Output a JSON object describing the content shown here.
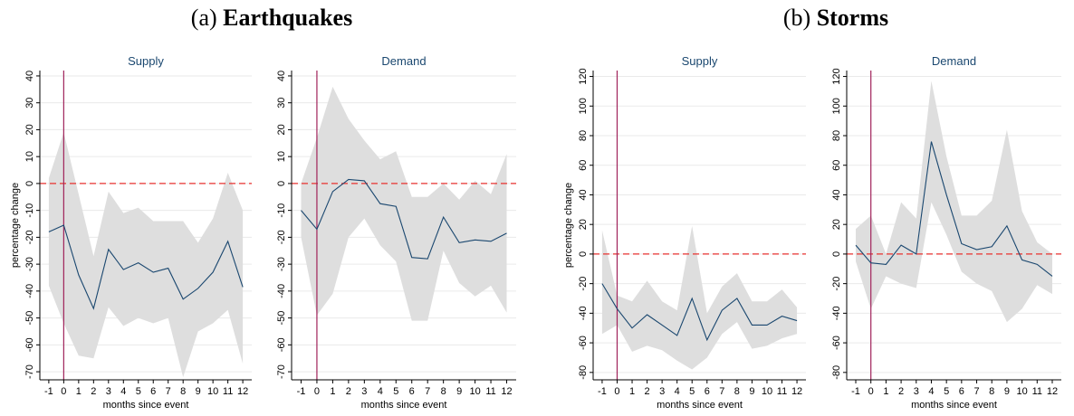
{
  "groups": [
    {
      "label": "(a)",
      "title": "Earthquakes"
    },
    {
      "label": "(b)",
      "title": "Storms"
    }
  ],
  "chart_data": [
    {
      "type": "line",
      "title": "Supply",
      "xlabel": "months since event",
      "ylabel": "percentage change",
      "x": [
        -1,
        0,
        1,
        2,
        3,
        4,
        5,
        6,
        7,
        8,
        9,
        10,
        11,
        12
      ],
      "values": [
        -18,
        -15.5,
        -34,
        -46.5,
        -24.5,
        -32,
        -29.5,
        -33,
        -31.5,
        -43,
        -39,
        -33,
        -21.5,
        -38.5
      ],
      "ci_upper": [
        2,
        19,
        -4,
        -27,
        -3,
        -11,
        -9,
        -14,
        -14,
        -14,
        -22,
        -13,
        4,
        -10
      ],
      "ci_lower": [
        -38,
        -52,
        -64,
        -65,
        -46,
        -53,
        -50,
        -52,
        -50,
        -72,
        -55,
        -52,
        -47,
        -67
      ],
      "color": "#1a476f",
      "band_color": "#dedede",
      "hline": 0,
      "hline_color": "#e8312f",
      "vline": 0,
      "vline_color": "#a0225a",
      "xlim": [
        -1.6,
        12.6
      ],
      "xticks": [
        -1,
        0,
        1,
        2,
        3,
        4,
        5,
        6,
        7,
        8,
        9,
        10,
        11,
        12
      ],
      "ylim": [
        -73,
        42
      ],
      "yticks": [
        -70,
        -60,
        -50,
        -40,
        -30,
        -20,
        -10,
        0,
        10,
        20,
        30,
        40
      ],
      "grid": true
    },
    {
      "type": "line",
      "title": "Demand",
      "xlabel": "months since event",
      "x": [
        -1,
        0,
        1,
        2,
        3,
        4,
        5,
        6,
        7,
        8,
        9,
        10,
        11,
        12
      ],
      "values": [
        -10,
        -17,
        -3,
        1.5,
        1,
        -7.5,
        -8.5,
        -27.5,
        -28,
        -12.5,
        -22,
        -21,
        -21.5,
        -18.5
      ],
      "ci_upper": [
        0,
        17,
        36,
        24,
        16,
        9,
        12,
        -5,
        -5,
        0,
        -6,
        1,
        -4,
        11
      ],
      "ci_lower": [
        -20,
        -49,
        -41,
        -20,
        -13,
        -23,
        -29,
        -51,
        -51,
        -25,
        -37,
        -42,
        -38,
        -48
      ],
      "color": "#1a476f",
      "band_color": "#dedede",
      "hline": 0,
      "hline_color": "#e8312f",
      "vline": 0,
      "vline_color": "#a0225a",
      "xlim": [
        -1.6,
        12.6
      ],
      "xticks": [
        -1,
        0,
        1,
        2,
        3,
        4,
        5,
        6,
        7,
        8,
        9,
        10,
        11,
        12
      ],
      "ylim": [
        -73,
        42
      ],
      "yticks": [
        -70,
        -60,
        -50,
        -40,
        -30,
        -20,
        -10,
        0,
        10,
        20,
        30,
        40
      ],
      "grid": true
    },
    {
      "type": "line",
      "title": "Supply",
      "xlabel": "months since event",
      "ylabel": "percentage change",
      "x": [
        -1,
        0,
        1,
        2,
        3,
        4,
        5,
        6,
        7,
        8,
        9,
        10,
        11,
        12
      ],
      "values": [
        -20,
        -37,
        -50,
        -41,
        -48,
        -55,
        -30,
        -58,
        -38,
        -30,
        -48,
        -48,
        -42,
        -45
      ],
      "ci_upper": [
        16,
        -28,
        -32,
        -18,
        -32,
        -38,
        19,
        -40,
        -22,
        -13,
        -32,
        -32,
        -24,
        -36
      ],
      "ci_lower": [
        -54,
        -48,
        -66,
        -62,
        -65,
        -72,
        -78,
        -70,
        -54,
        -46,
        -64,
        -62,
        -57,
        -54
      ],
      "color": "#1a476f",
      "band_color": "#dedede",
      "hline": 0,
      "hline_color": "#e8312f",
      "vline": 0,
      "vline_color": "#a0225a",
      "xlim": [
        -1.6,
        12.6
      ],
      "xticks": [
        -1,
        0,
        1,
        2,
        3,
        4,
        5,
        6,
        7,
        8,
        9,
        10,
        11,
        12
      ],
      "ylim": [
        -85,
        124
      ],
      "yticks": [
        -80,
        -60,
        -40,
        -20,
        0,
        20,
        40,
        60,
        80,
        100,
        120
      ],
      "grid": true
    },
    {
      "type": "line",
      "title": "Demand",
      "xlabel": "months since event",
      "x": [
        -1,
        0,
        1,
        2,
        3,
        4,
        5,
        6,
        7,
        8,
        9,
        10,
        11,
        12
      ],
      "values": [
        6,
        -6,
        -7,
        6,
        0,
        76,
        40,
        7,
        3,
        5,
        19,
        -4,
        -7,
        -15
      ],
      "ci_upper": [
        17,
        26,
        0,
        35,
        24,
        117,
        66,
        26,
        26,
        36,
        84,
        29,
        8,
        0
      ],
      "ci_lower": [
        -5,
        -37,
        -15,
        -20,
        -23,
        35,
        13,
        -12,
        -20,
        -25,
        -46,
        -37,
        -21,
        -27
      ],
      "color": "#1a476f",
      "band_color": "#dedede",
      "hline": 0,
      "hline_color": "#e8312f",
      "vline": 0,
      "vline_color": "#a0225a",
      "xlim": [
        -1.6,
        12.6
      ],
      "xticks": [
        -1,
        0,
        1,
        2,
        3,
        4,
        5,
        6,
        7,
        8,
        9,
        10,
        11,
        12
      ],
      "ylim": [
        -85,
        124
      ],
      "yticks": [
        -80,
        -60,
        -40,
        -20,
        0,
        20,
        40,
        60,
        80,
        100,
        120
      ],
      "grid": true
    }
  ]
}
